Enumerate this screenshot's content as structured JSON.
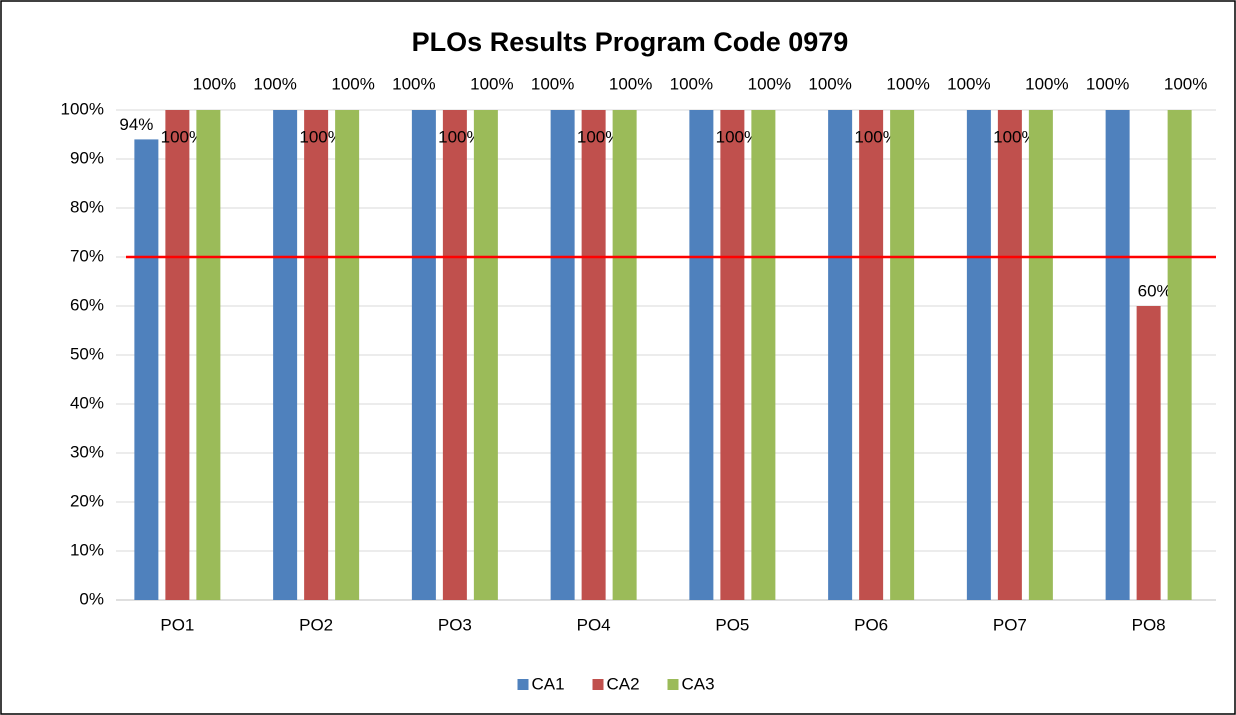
{
  "chart_data": {
    "type": "bar",
    "title": "PLOs Results Program Code 0979",
    "categories": [
      "PO1",
      "PO2",
      "PO3",
      "PO4",
      "PO5",
      "PO6",
      "PO7",
      "PO8"
    ],
    "series": [
      {
        "name": "CA1",
        "color": "#4f81bd",
        "values": [
          94,
          100,
          100,
          100,
          100,
          100,
          100,
          100
        ],
        "value_labels": [
          "94%",
          "100%",
          "100%",
          "100%",
          "100%",
          "100%",
          "100%",
          "100%"
        ]
      },
      {
        "name": "CA2",
        "color": "#c0504d",
        "values": [
          100,
          100,
          100,
          100,
          100,
          100,
          100,
          60
        ],
        "value_labels": [
          "100%",
          "100%",
          "100%",
          "100%",
          "100%",
          "100%",
          "100%",
          "60%"
        ]
      },
      {
        "name": "CA3",
        "color": "#9bbb59",
        "values": [
          100,
          100,
          100,
          100,
          100,
          100,
          100,
          100
        ],
        "value_labels": [
          "100%",
          "100%",
          "100%",
          "100%",
          "100%",
          "100%",
          "100%",
          "100%"
        ]
      }
    ],
    "ylim": [
      0,
      100
    ],
    "yticks": [
      {
        "value": 0,
        "label": "0%"
      },
      {
        "value": 10,
        "label": "10%"
      },
      {
        "value": 20,
        "label": "20%"
      },
      {
        "value": 30,
        "label": "30%"
      },
      {
        "value": 40,
        "label": "40%"
      },
      {
        "value": 50,
        "label": "50%"
      },
      {
        "value": 60,
        "label": "60%"
      },
      {
        "value": 70,
        "label": "70%"
      },
      {
        "value": 80,
        "label": "80%"
      },
      {
        "value": 90,
        "label": "90%"
      },
      {
        "value": 100,
        "label": "100%"
      }
    ],
    "grid": true,
    "reference_line": {
      "value": 70,
      "color": "#ff0000"
    },
    "legend": "bottom"
  }
}
